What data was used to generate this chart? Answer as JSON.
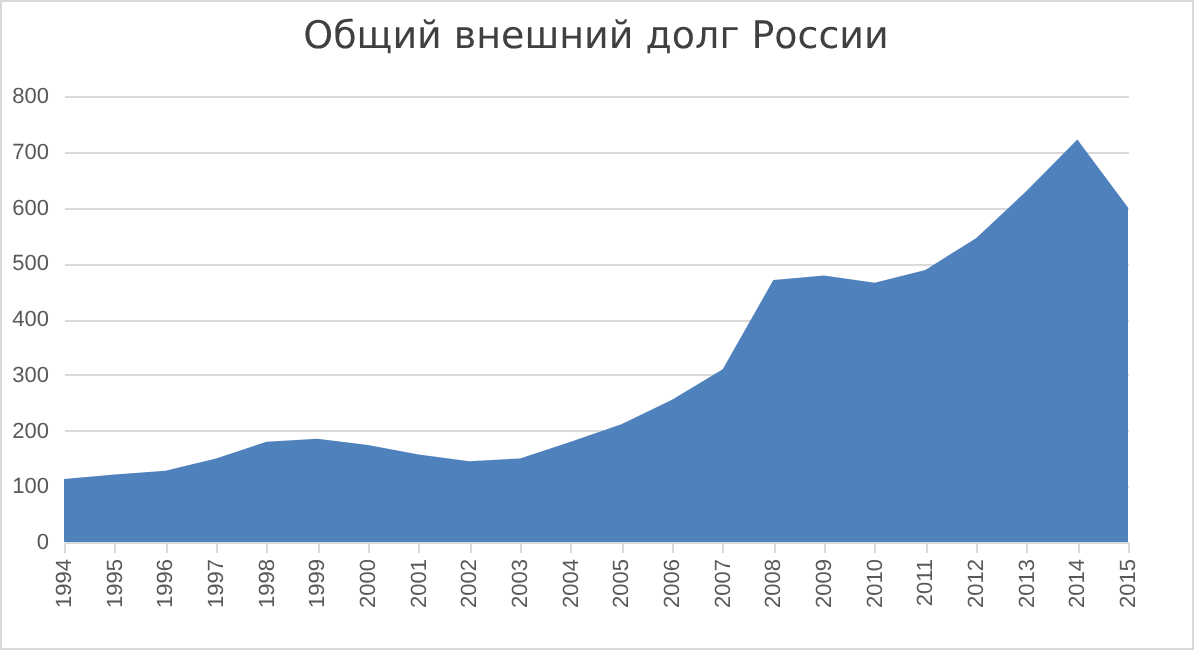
{
  "chart_data": {
    "type": "area",
    "title": "Общий внешний долг России",
    "categories": [
      "1994",
      "1995",
      "1996",
      "1997",
      "1998",
      "1999",
      "2000",
      "2001",
      "2002",
      "2003",
      "2004",
      "2005",
      "2006",
      "2007",
      "2008",
      "2009",
      "2010",
      "2011",
      "2012",
      "2013",
      "2014",
      "2015"
    ],
    "series": [
      {
        "color": "#4f81bd",
        "values": [
          113,
          121,
          128,
          150,
          180,
          185,
          174,
          157,
          145,
          150,
          180,
          211,
          255,
          310,
          470,
          478,
          465,
          488,
          545,
          630,
          722,
          600
        ]
      }
    ],
    "ylim": [
      0,
      800
    ],
    "yticks": [
      0,
      100,
      200,
      300,
      400,
      500,
      600,
      700,
      800
    ],
    "grid": "y"
  }
}
